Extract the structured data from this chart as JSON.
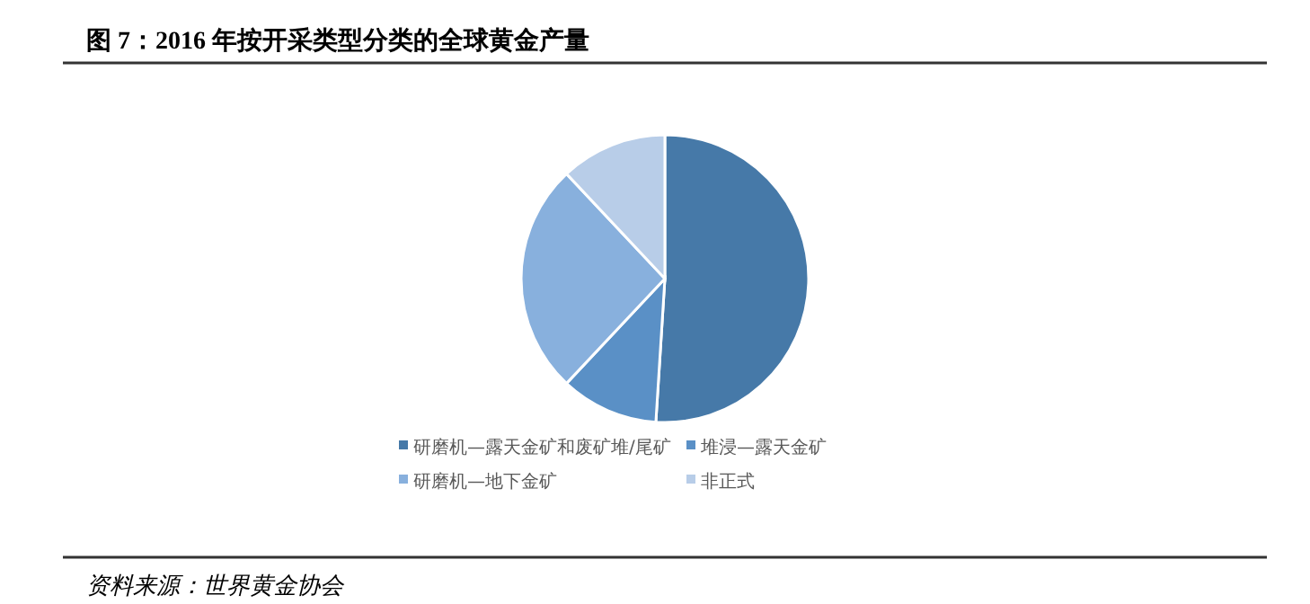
{
  "chart_data": {
    "type": "pie",
    "title": "图 7：2016 年按开采类型分类的全球黄金产量",
    "categories": [
      "研磨机—露天金矿和废矿堆/尾矿",
      "堆浸—露天金矿",
      "研磨机—地下金矿",
      "非正式"
    ],
    "values": [
      51,
      11,
      26,
      12
    ],
    "colors": [
      "#4679a8",
      "#5a90c6",
      "#88b0dd",
      "#b8cde8"
    ],
    "legend": "bottom",
    "annotations": [
      "资料来源：世界黄金协会"
    ]
  }
}
